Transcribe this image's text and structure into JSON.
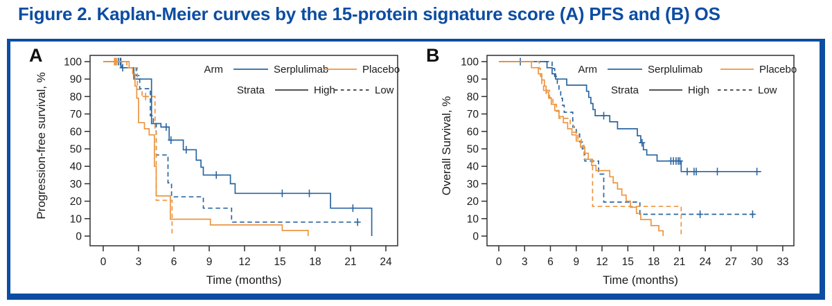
{
  "figure": {
    "title": "Figure 2. Kaplan-Meier curves by the 15-protein signature score (A) PFS and (B) OS"
  },
  "colors": {
    "title": "#0c4da2",
    "border": "#0c4da2",
    "serplulimab": "#2a65a0",
    "placebo": "#ec9540",
    "axis": "#2e2e2e",
    "text": "#1a1a1a"
  },
  "legend": {
    "arm_label": "Arm",
    "strata_label": "Strata",
    "arms": [
      {
        "label": "Serplulimab",
        "color_key": "serplulimab"
      },
      {
        "label": "Placebo",
        "color_key": "placebo"
      }
    ],
    "strata": [
      {
        "label": "High",
        "dashed": false
      },
      {
        "label": "Low",
        "dashed": true
      }
    ]
  },
  "chart_data": [
    {
      "panel_label": "A",
      "type": "line",
      "step": true,
      "x_label": "Time (months)",
      "y_label": "Progression-free survival, %",
      "xlim": [
        0,
        24
      ],
      "ylim": [
        0,
        100
      ],
      "x_ticks": [
        0,
        3,
        6,
        9,
        12,
        15,
        18,
        21,
        24
      ],
      "y_ticks": [
        0,
        10,
        20,
        30,
        40,
        50,
        60,
        70,
        80,
        90,
        100
      ],
      "grid": false,
      "legend_position": "top-right",
      "series": [
        {
          "name": "Serplulimab High",
          "arm": "Serplulimab",
          "strata": "High",
          "color_key": "serplulimab",
          "dashed": false,
          "start": [
            0,
            100
          ],
          "end_time": 22.8,
          "drops": [
            [
              1.5,
              96.5
            ],
            [
              2.6,
              90
            ],
            [
              4.1,
              64.5
            ],
            [
              4.9,
              62.5
            ],
            [
              5.6,
              55
            ],
            [
              6.8,
              49.5
            ],
            [
              7.9,
              43.5
            ],
            [
              8.3,
              39.5
            ],
            [
              8.5,
              35
            ],
            [
              10.8,
              30
            ],
            [
              11.2,
              24.5
            ],
            [
              19.3,
              16
            ],
            [
              22.8,
              0
            ]
          ],
          "censors": [
            [
              1.3,
              100
            ],
            [
              1.45,
              100
            ],
            [
              5.35,
              62.5
            ],
            [
              5.75,
              55
            ],
            [
              7.05,
              49.5
            ],
            [
              9.6,
              35
            ],
            [
              15.2,
              24.5
            ],
            [
              17.5,
              24.5
            ],
            [
              21.2,
              16
            ]
          ]
        },
        {
          "name": "Serplulimab Low",
          "arm": "Serplulimab",
          "strata": "Low",
          "color_key": "serplulimab",
          "dashed": true,
          "start": [
            0,
            100
          ],
          "end_time": 21.8,
          "drops": [
            [
              1.6,
              96.5
            ],
            [
              2.8,
              92
            ],
            [
              3.1,
              84.5
            ],
            [
              4.0,
              69
            ],
            [
              4.25,
              64.5
            ],
            [
              4.5,
              46.5
            ],
            [
              5.5,
              30.5
            ],
            [
              5.8,
              22.5
            ],
            [
              8.5,
              16
            ],
            [
              10.9,
              8
            ]
          ],
          "censors": [
            [
              1.5,
              100
            ],
            [
              1.65,
              96.5
            ],
            [
              21.6,
              8
            ]
          ]
        },
        {
          "name": "Placebo High",
          "arm": "Placebo",
          "strata": "High",
          "color_key": "placebo",
          "dashed": false,
          "start": [
            0,
            100
          ],
          "end_time": 17.4,
          "drops": [
            [
              2.2,
              96.5
            ],
            [
              2.5,
              93
            ],
            [
              2.7,
              86
            ],
            [
              2.85,
              79
            ],
            [
              3.0,
              65
            ],
            [
              3.5,
              61.5
            ],
            [
              3.9,
              58
            ],
            [
              4.35,
              40
            ],
            [
              4.5,
              23
            ],
            [
              5.7,
              9.7
            ],
            [
              9.1,
              6.4
            ],
            [
              15.2,
              3.2
            ],
            [
              17.4,
              0
            ]
          ],
          "censors": [
            [
              0.95,
              100
            ],
            [
              1.15,
              100
            ]
          ]
        },
        {
          "name": "Placebo Low",
          "arm": "Placebo",
          "strata": "Low",
          "color_key": "placebo",
          "dashed": true,
          "start": [
            0,
            100
          ],
          "end_time": 5.85,
          "drops": [
            [
              2.0,
              96.5
            ],
            [
              2.9,
              84
            ],
            [
              3.3,
              80
            ],
            [
              4.4,
              60
            ],
            [
              4.5,
              20.5
            ],
            [
              5.85,
              0
            ]
          ],
          "censors": [
            [
              1.05,
              100
            ],
            [
              3.6,
              80
            ]
          ]
        }
      ]
    },
    {
      "panel_label": "B",
      "type": "line",
      "step": true,
      "x_label": "Time (months)",
      "y_label": "Overall Survival, %",
      "xlim": [
        0,
        33
      ],
      "ylim": [
        0,
        100
      ],
      "x_ticks": [
        0,
        3,
        6,
        9,
        12,
        15,
        18,
        21,
        24,
        27,
        30,
        33
      ],
      "y_ticks": [
        0,
        10,
        20,
        30,
        40,
        50,
        60,
        70,
        80,
        90,
        100
      ],
      "grid": false,
      "legend_position": "top-right",
      "series": [
        {
          "name": "Serplulimab High",
          "arm": "Serplulimab",
          "strata": "High",
          "color_key": "serplulimab",
          "dashed": false,
          "start": [
            0,
            100
          ],
          "end_time": 30.5,
          "drops": [
            [
              5.6,
              96.5
            ],
            [
              6.2,
              93
            ],
            [
              6.6,
              90
            ],
            [
              7.9,
              86.5
            ],
            [
              10.2,
              83
            ],
            [
              10.45,
              79.5
            ],
            [
              10.7,
              76
            ],
            [
              10.95,
              72.5
            ],
            [
              11.2,
              69
            ],
            [
              12.9,
              65.5
            ],
            [
              13.8,
              61.5
            ],
            [
              16.1,
              57.5
            ],
            [
              16.5,
              53.5
            ],
            [
              16.8,
              49.5
            ],
            [
              17.2,
              46.5
            ],
            [
              18.4,
              43
            ],
            [
              21.2,
              37
            ]
          ],
          "censors": [
            [
              2.5,
              100
            ],
            [
              12.2,
              69
            ],
            [
              16.65,
              53.5
            ],
            [
              20.0,
              43
            ],
            [
              20.3,
              43
            ],
            [
              20.6,
              43
            ],
            [
              20.85,
              43
            ],
            [
              21.05,
              43
            ],
            [
              21.9,
              37
            ],
            [
              22.7,
              37
            ],
            [
              22.95,
              37
            ],
            [
              25.4,
              37
            ],
            [
              30.0,
              37
            ]
          ]
        },
        {
          "name": "Serplulimab Low",
          "arm": "Serplulimab",
          "strata": "Low",
          "color_key": "serplulimab",
          "dashed": true,
          "start": [
            0,
            100
          ],
          "end_time": 29.7,
          "drops": [
            [
              6.2,
              96
            ],
            [
              6.5,
              91.5
            ],
            [
              6.8,
              87.5
            ],
            [
              7.0,
              83.5
            ],
            [
              7.2,
              79
            ],
            [
              7.4,
              75
            ],
            [
              7.6,
              71
            ],
            [
              8.6,
              62.5
            ],
            [
              9.0,
              58.5
            ],
            [
              9.4,
              54
            ],
            [
              9.7,
              50
            ],
            [
              10.0,
              43
            ],
            [
              11.6,
              35.5
            ],
            [
              12.2,
              19.5
            ],
            [
              16.4,
              12.5
            ]
          ],
          "censors": [
            [
              23.4,
              12.5
            ],
            [
              29.5,
              12.5
            ]
          ]
        },
        {
          "name": "Placebo High",
          "arm": "Placebo",
          "strata": "High",
          "color_key": "placebo",
          "dashed": false,
          "start": [
            0,
            100
          ],
          "end_time": 19.1,
          "drops": [
            [
              3.8,
              96.5
            ],
            [
              4.6,
              93
            ],
            [
              5.0,
              89.5
            ],
            [
              5.3,
              86
            ],
            [
              5.5,
              82.5
            ],
            [
              5.8,
              79
            ],
            [
              6.1,
              75.5
            ],
            [
              6.5,
              72
            ],
            [
              7.0,
              68.5
            ],
            [
              7.5,
              65
            ],
            [
              8.0,
              61.5
            ],
            [
              8.5,
              58
            ],
            [
              9.0,
              54.5
            ],
            [
              9.5,
              51
            ],
            [
              10.0,
              47.5
            ],
            [
              10.4,
              44
            ],
            [
              10.8,
              40.5
            ],
            [
              11.3,
              37.5
            ],
            [
              12.9,
              34
            ],
            [
              13.3,
              30.5
            ],
            [
              13.8,
              27
            ],
            [
              14.3,
              23.5
            ],
            [
              14.8,
              20
            ],
            [
              15.3,
              16.5
            ],
            [
              16.0,
              13
            ],
            [
              16.5,
              9.5
            ],
            [
              17.7,
              6
            ],
            [
              18.6,
              3
            ],
            [
              19.1,
              0
            ]
          ],
          "censors": []
        },
        {
          "name": "Placebo Low",
          "arm": "Placebo",
          "strata": "Low",
          "color_key": "placebo",
          "dashed": true,
          "start": [
            0,
            100
          ],
          "end_time": 21.2,
          "drops": [
            [
              4.7,
              96
            ],
            [
              4.85,
              91.5
            ],
            [
              5.0,
              87.5
            ],
            [
              5.2,
              83.5
            ],
            [
              5.9,
              79.5
            ],
            [
              6.3,
              75.5
            ],
            [
              6.7,
              71.5
            ],
            [
              7.0,
              67.5
            ],
            [
              8.3,
              63.5
            ],
            [
              8.7,
              59.5
            ],
            [
              9.2,
              55.5
            ],
            [
              9.6,
              52
            ],
            [
              9.9,
              44
            ],
            [
              10.9,
              17
            ],
            [
              21.2,
              0
            ]
          ],
          "censors": [
            [
              5.5,
              83.5
            ]
          ]
        }
      ]
    }
  ]
}
